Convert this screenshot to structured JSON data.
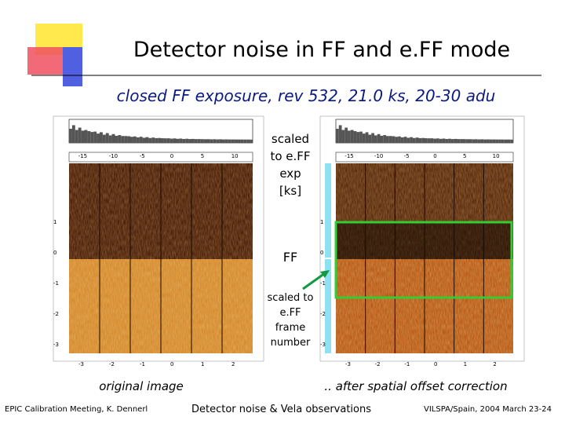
{
  "header": {
    "title": "Detector noise in FF and e.FF mode",
    "subtitle": "closed  FF exposure, rev 532, 21.0 ks, 20-30 adu"
  },
  "annotations": {
    "upper": "scaled to e.FF exp [ks]",
    "middle": "FF",
    "lower": "scaled to e.FF frame number"
  },
  "panels": {
    "left_caption": "original image",
    "right_caption": ".. after spatial offset correction"
  },
  "axes": {
    "top_ticks": [
      "-15",
      "-10",
      "-5",
      "0",
      "5",
      "10"
    ],
    "left_ticks": [
      "1",
      "0",
      "-1",
      "-2",
      "-3"
    ],
    "bottom_ticks": [
      "-3",
      "-2",
      "-1",
      "0",
      "1",
      "2"
    ]
  },
  "footer": {
    "left": "EPIC Calibration Meeting, K. Dennerl",
    "center": "Detector noise & Vela observations",
    "right": "VILSPA/Spain, 2004 March 23-24"
  }
}
